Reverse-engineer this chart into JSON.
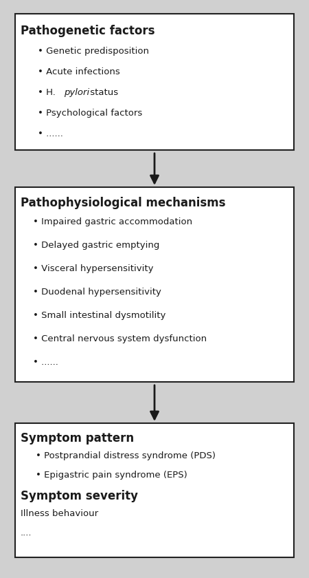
{
  "background_color": "#d0d0d0",
  "box_bg": "#ffffff",
  "box_edge": "#222222",
  "text_color": "#1a1a1a",
  "fig_width": 4.5,
  "fig_height": 8.4,
  "dpi": 100,
  "box1": {
    "title": "Pathogenetic factors",
    "bullets": [
      [
        "normal",
        "• Genetic predisposition"
      ],
      [
        "normal",
        "• Acute infections"
      ],
      [
        "pylori",
        "• H. pylori status"
      ],
      [
        "normal",
        "• Psychological factors"
      ],
      [
        "normal",
        "• ......"
      ]
    ]
  },
  "box2": {
    "title": "Pathophysiological mechanisms",
    "bullets": [
      "• Impaired gastric accommodation",
      "• Delayed gastric emptying",
      "• Visceral hypersensitivity",
      "• Duodenal hypersensitivity",
      "• Small intestinal dysmotility",
      "• Central nervous system dysfunction",
      "• ......"
    ]
  },
  "box3": {
    "lines": [
      {
        "text": "Symptom pattern",
        "style": "bold",
        "indent": false
      },
      {
        "text": "• Postprandial distress syndrome (PDS)",
        "style": "normal",
        "indent": true
      },
      {
        "text": "• Epigastric pain syndrome (EPS)",
        "style": "normal",
        "indent": true
      },
      {
        "text": "Symptom severity",
        "style": "bold",
        "indent": false
      },
      {
        "text": "Illness behaviour",
        "style": "normal",
        "indent": false
      },
      {
        "text": "....",
        "style": "normal",
        "indent": false
      }
    ]
  }
}
